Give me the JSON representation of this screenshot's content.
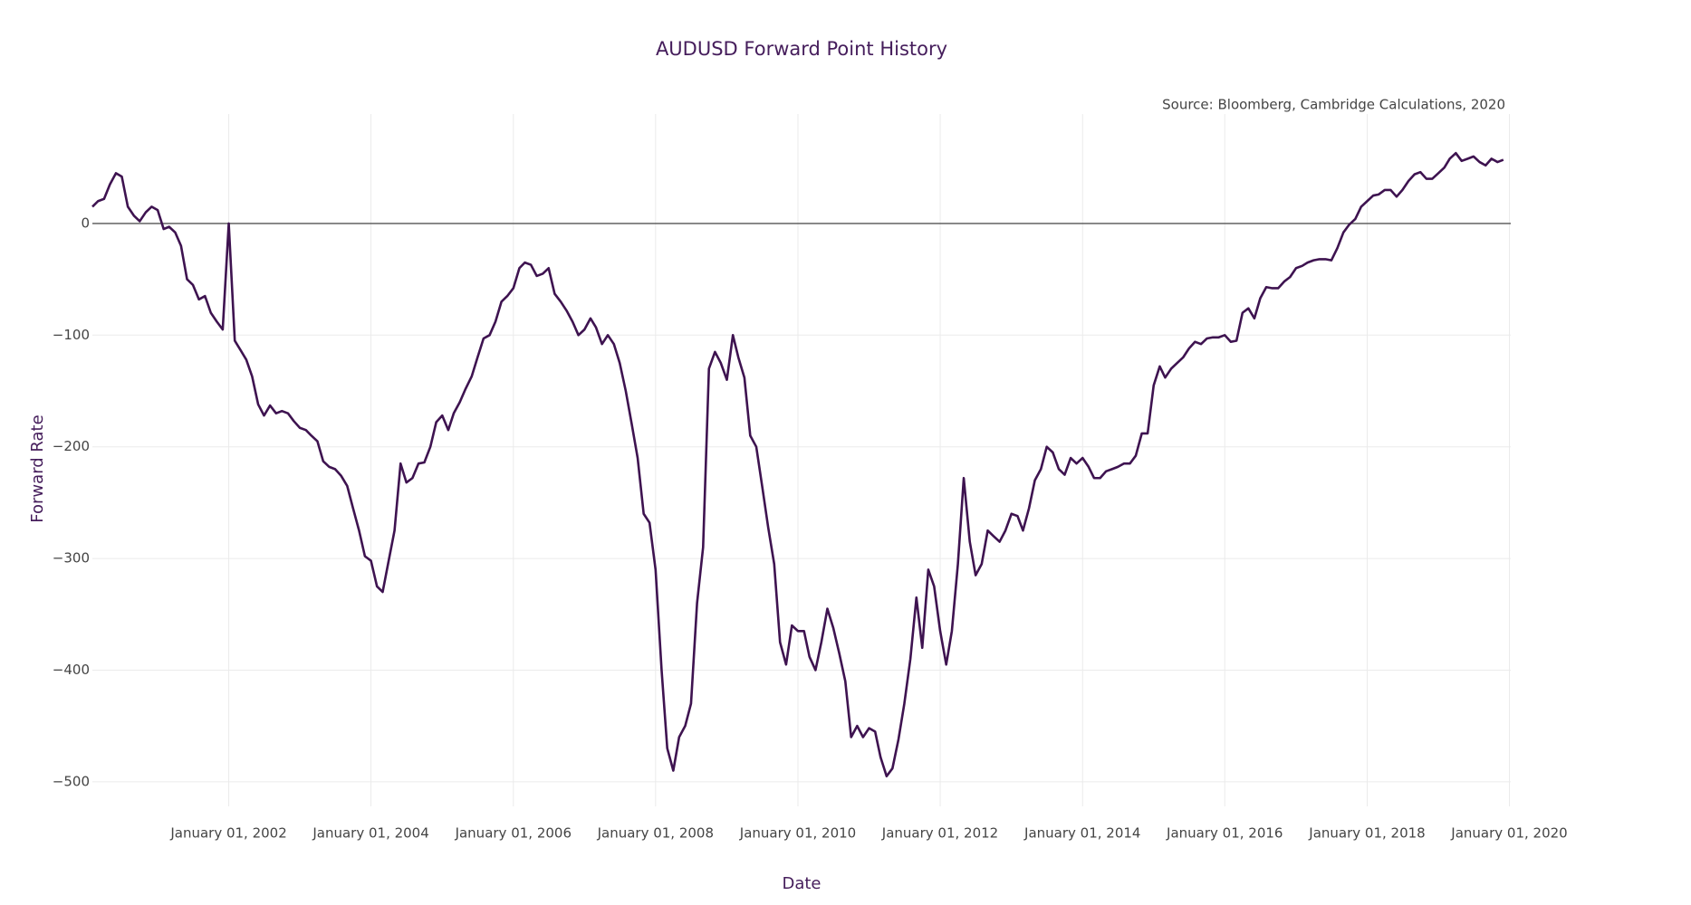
{
  "chart_data": {
    "type": "line",
    "title": "AUDUSD Forward Point History",
    "subtitle": "Source: Bloomberg, Cambridge Calculations, 2020",
    "x_label": "Date",
    "y_label": "Forward Rate",
    "color": "#3e1350",
    "grid": true,
    "zeroline": true,
    "xlim": [
      "2000-02-01",
      "2020-01-08"
    ],
    "xticks": [
      {
        "value": "2002-01-01",
        "label": "January 01, 2002"
      },
      {
        "value": "2004-01-01",
        "label": "January 01, 2004"
      },
      {
        "value": "2006-01-01",
        "label": "January 01, 2006"
      },
      {
        "value": "2008-01-01",
        "label": "January 01, 2008"
      },
      {
        "value": "2010-01-01",
        "label": "January 01, 2010"
      },
      {
        "value": "2012-01-01",
        "label": "January 01, 2012"
      },
      {
        "value": "2014-01-01",
        "label": "January 01, 2014"
      },
      {
        "value": "2016-01-01",
        "label": "January 01, 2016"
      },
      {
        "value": "2018-01-01",
        "label": "January 01, 2018"
      },
      {
        "value": "2020-01-01",
        "label": "January 01, 2020"
      }
    ],
    "ylim": [
      -522,
      98
    ],
    "yticks": [
      {
        "value": -500,
        "label": "−500"
      },
      {
        "value": -400,
        "label": "−400"
      },
      {
        "value": -300,
        "label": "−300"
      },
      {
        "value": -200,
        "label": "−200"
      },
      {
        "value": -100,
        "label": "−100"
      },
      0
    ],
    "x": [
      "2000-02-01",
      "2000-03-01",
      "2000-04-01",
      "2000-05-01",
      "2000-06-01",
      "2000-07-01",
      "2000-08-01",
      "2000-09-01",
      "2000-10-01",
      "2000-11-01",
      "2000-12-01",
      "2001-01-01",
      "2001-02-01",
      "2001-03-01",
      "2001-04-01",
      "2001-05-01",
      "2001-06-01",
      "2001-07-01",
      "2001-08-01",
      "2001-09-01",
      "2001-10-01",
      "2001-11-01",
      "2001-12-01",
      "2002-01-01",
      "2002-02-01",
      "2002-03-01",
      "2002-04-01",
      "2002-05-01",
      "2002-06-01",
      "2002-07-01",
      "2002-08-01",
      "2002-09-01",
      "2002-10-01",
      "2002-11-01",
      "2002-12-01",
      "2003-01-01",
      "2003-02-01",
      "2003-03-01",
      "2003-04-01",
      "2003-05-01",
      "2003-06-01",
      "2003-07-01",
      "2003-08-01",
      "2003-09-01",
      "2003-10-01",
      "2003-11-01",
      "2003-12-01",
      "2004-01-01",
      "2004-02-01",
      "2004-03-01",
      "2004-04-01",
      "2004-05-01",
      "2004-06-01",
      "2004-07-01",
      "2004-08-01",
      "2004-09-01",
      "2004-10-01",
      "2004-11-01",
      "2004-12-01",
      "2005-01-01",
      "2005-02-01",
      "2005-03-01",
      "2005-04-01",
      "2005-05-01",
      "2005-06-01",
      "2005-07-01",
      "2005-08-01",
      "2005-09-01",
      "2005-10-01",
      "2005-11-01",
      "2005-12-01",
      "2006-01-01",
      "2006-02-01",
      "2006-03-01",
      "2006-04-01",
      "2006-05-01",
      "2006-06-01",
      "2006-07-01",
      "2006-08-01",
      "2006-09-01",
      "2006-10-01",
      "2006-11-01",
      "2006-12-01",
      "2007-01-01",
      "2007-02-01",
      "2007-03-01",
      "2007-04-01",
      "2007-05-01",
      "2007-06-01",
      "2007-07-01",
      "2007-08-01",
      "2007-09-01",
      "2007-10-01",
      "2007-11-01",
      "2007-12-01",
      "2008-01-01",
      "2008-02-01",
      "2008-03-01",
      "2008-04-01",
      "2008-05-01",
      "2008-06-01",
      "2008-07-01",
      "2008-08-01",
      "2008-09-01",
      "2008-10-01",
      "2008-11-01",
      "2008-12-01",
      "2009-01-01",
      "2009-02-01",
      "2009-03-01",
      "2009-04-01",
      "2009-05-01",
      "2009-06-01",
      "2009-07-01",
      "2009-08-01",
      "2009-09-01",
      "2009-10-01",
      "2009-11-01",
      "2009-12-01",
      "2010-01-01",
      "2010-02-01",
      "2010-03-01",
      "2010-04-01",
      "2010-05-01",
      "2010-06-01",
      "2010-07-01",
      "2010-08-01",
      "2010-09-01",
      "2010-10-01",
      "2010-11-01",
      "2010-12-01",
      "2011-01-01",
      "2011-02-01",
      "2011-03-01",
      "2011-04-01",
      "2011-05-01",
      "2011-06-01",
      "2011-07-01",
      "2011-08-01",
      "2011-09-01",
      "2011-10-01",
      "2011-11-01",
      "2011-12-01",
      "2012-01-01",
      "2012-02-01",
      "2012-03-01",
      "2012-04-01",
      "2012-05-01",
      "2012-06-01",
      "2012-07-01",
      "2012-08-01",
      "2012-09-01",
      "2012-10-01",
      "2012-11-01",
      "2012-12-01",
      "2013-01-01",
      "2013-02-01",
      "2013-03-01",
      "2013-04-01",
      "2013-05-01",
      "2013-06-01",
      "2013-07-01",
      "2013-08-01",
      "2013-09-01",
      "2013-10-01",
      "2013-11-01",
      "2013-12-01",
      "2014-01-01",
      "2014-02-01",
      "2014-03-01",
      "2014-04-01",
      "2014-05-01",
      "2014-06-01",
      "2014-07-01",
      "2014-08-01",
      "2014-09-01",
      "2014-10-01",
      "2014-11-01",
      "2014-12-01",
      "2015-01-01",
      "2015-02-01",
      "2015-03-01",
      "2015-04-01",
      "2015-05-01",
      "2015-06-01",
      "2015-07-01",
      "2015-08-01",
      "2015-09-01",
      "2015-10-01",
      "2015-11-01",
      "2015-12-01",
      "2016-01-01",
      "2016-02-01",
      "2016-03-01",
      "2016-04-01",
      "2016-05-01",
      "2016-06-01",
      "2016-07-01",
      "2016-08-01",
      "2016-09-01",
      "2016-10-01",
      "2016-11-01",
      "2016-12-01",
      "2017-01-01",
      "2017-02-01",
      "2017-03-01",
      "2017-04-01",
      "2017-05-01",
      "2017-06-01",
      "2017-07-01",
      "2017-08-01",
      "2017-09-01",
      "2017-10-01",
      "2017-11-01",
      "2017-12-01",
      "2018-01-01",
      "2018-02-01",
      "2018-03-01",
      "2018-04-01",
      "2018-05-01",
      "2018-06-01",
      "2018-07-01",
      "2018-08-01",
      "2018-09-01",
      "2018-10-01",
      "2018-11-01",
      "2018-12-01",
      "2019-01-01",
      "2019-02-01",
      "2019-03-01",
      "2019-04-01",
      "2019-05-01",
      "2019-06-01",
      "2019-07-01",
      "2019-08-01",
      "2019-09-01",
      "2019-10-01",
      "2019-11-01",
      "2019-12-01"
    ],
    "values": [
      15,
      20,
      22,
      35,
      45,
      42,
      15,
      7,
      2,
      10,
      15,
      12,
      -5,
      -3,
      -8,
      -20,
      -50,
      -55,
      -68,
      -65,
      -80,
      -88,
      -95,
      0,
      -105,
      -113,
      -122,
      -137,
      -162,
      -172,
      -163,
      -170,
      -168,
      -170,
      -177,
      -183,
      -185,
      -190,
      -195,
      -213,
      -218,
      -220,
      -226,
      -235,
      -255,
      -275,
      -298,
      -302,
      -325,
      -330,
      -302,
      -275,
      -215,
      -232,
      -228,
      -215,
      -214,
      -200,
      -178,
      -172,
      -185,
      -170,
      -160,
      -148,
      -137,
      -120,
      -103,
      -100,
      -88,
      -70,
      -65,
      -58,
      -40,
      -35,
      -37,
      -47,
      -45,
      -40,
      -63,
      -70,
      -78,
      -88,
      -100,
      -95,
      -85,
      -93,
      -108,
      -100,
      -108,
      -125,
      -150,
      -180,
      -210,
      -260,
      -268,
      -310,
      -400,
      -470,
      -490,
      -460,
      -450,
      -430,
      -340,
      -290,
      -130,
      -115,
      -125,
      -140,
      -100,
      -120,
      -138,
      -190,
      -200,
      -235,
      -272,
      -305,
      -375,
      -395,
      -360,
      -365,
      -365,
      -388,
      -400,
      -375,
      -345,
      -362,
      -385,
      -410,
      -460,
      -450,
      -460,
      -452,
      -455,
      -478,
      -495,
      -488,
      -462,
      -430,
      -390,
      -335,
      -380,
      -310,
      -325,
      -365,
      -395,
      -365,
      -305,
      -228,
      -285,
      -315,
      -305,
      -275,
      -280,
      -285,
      -275,
      -260,
      -262,
      -275,
      -255,
      -230,
      -220,
      -200,
      -205,
      -220,
      -225,
      -210,
      -215,
      -210,
      -218,
      -228,
      -228,
      -222,
      -220,
      -218,
      -215,
      -215,
      -208,
      -188,
      -188,
      -145,
      -128,
      -138,
      -130,
      -125,
      -120,
      -112,
      -106,
      -108,
      -103,
      -102,
      -102,
      -100,
      -106,
      -105,
      -80,
      -76,
      -85,
      -67,
      -57,
      -58,
      -58,
      -52,
      -48,
      -40,
      -38,
      -35,
      -33,
      -32,
      -32,
      -33,
      -22,
      -8,
      -1,
      4,
      15,
      20,
      25,
      26,
      30,
      30,
      24,
      30,
      38,
      44,
      46,
      40,
      40,
      45,
      50,
      58,
      63,
      56,
      58,
      60,
      55,
      52,
      58,
      55,
      57
    ]
  }
}
